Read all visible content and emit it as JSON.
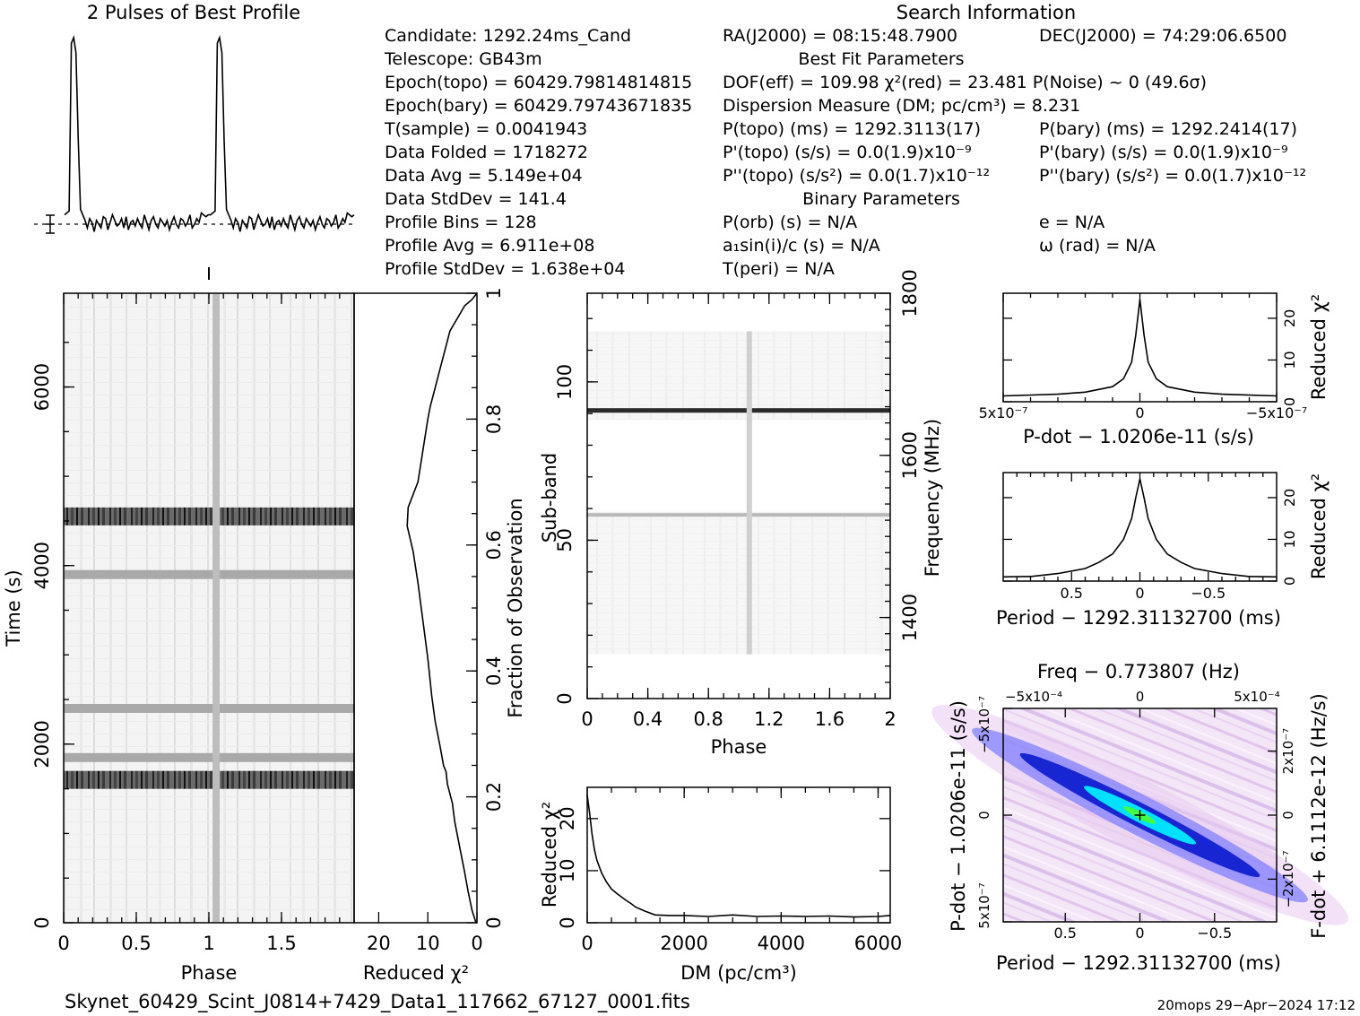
{
  "profile": {
    "title": "2 Pulses of Best Profile",
    "values": [
      0.05,
      0.06,
      0.07,
      0.97,
      1.0,
      0.92,
      0.45,
      0.08,
      0.05,
      0.02,
      -0.02,
      0.03,
      0.01,
      -0.04,
      0.02,
      0.0,
      -0.02,
      0.04,
      0.03,
      -0.03,
      0.01,
      0.05,
      0.02,
      -0.01,
      0.0,
      0.03,
      -0.02,
      0.04,
      -0.03,
      0.01,
      0.02,
      -0.01,
      0.03,
      0.0,
      -0.02,
      0.05,
      0.01,
      -0.03,
      0.02,
      0.04,
      0.0,
      -0.02,
      0.03,
      0.01,
      -0.01,
      0.02,
      -0.03,
      0.01,
      0.04,
      0.0,
      -0.02,
      0.03,
      0.02,
      -0.01,
      0.01,
      0.05,
      -0.02,
      0.0,
      0.03,
      0.01,
      0.06,
      0.05,
      0.04,
      0.05
    ]
  },
  "search_info": {
    "title": "Search Information",
    "col1": [
      "Candidate:  1292.24ms_Cand",
      "Telescope:  GB43m",
      "Epoch(topo) = 60429.79814814815",
      "Epoch(bary) = 60429.79743671835",
      "T(sample)       =  0.0041943",
      "Data Folded     =  1718272",
      "Data Avg        =  5.149e+04",
      "Data StdDev     =  141.4",
      "Profile Bins    =  128",
      "Profile Avg     =  6.911e+08",
      "Profile StdDev  =  1.638e+04"
    ],
    "col2": [
      "RA(J2000) = 08:15:48.7900",
      "Best Fit Parameters",
      "DOF(eff) = 109.98  χ²(red) = 23.481  P(Noise) ~ 0   (49.6σ)",
      "Dispersion Measure (DM; pc/cm³) = 8.231",
      "P(topo) (ms) =  1292.3113(17)",
      "P'(topo) (s/s) = 0.0(1.9)x10⁻⁹",
      "P''(topo) (s/s²) = 0.0(1.7)x10⁻¹²",
      "Binary Parameters",
      "P(orb) (s) = N/A",
      "a₁sin(i)/c (s) = N/A",
      "T(peri) = N/A"
    ],
    "col3": [
      "DEC(J2000) = 74:29:06.6500",
      "P(bary) (ms) =  1292.2414(17)",
      "P'(bary) (s/s) = 0.0(1.9)x10⁻⁹",
      "P''(bary) (s/s²) = 0.0(1.7)x10⁻¹²",
      "e = N/A",
      "ω (rad) = N/A"
    ]
  },
  "chart_data": [
    {
      "type": "heatmap",
      "name": "time-phase",
      "xlabel": "Phase",
      "ylabel": "Time (s)",
      "xlim": [
        0,
        2
      ],
      "ylim": [
        0,
        7050
      ],
      "xticks": [
        "0",
        "0.5",
        "1",
        "1.5"
      ],
      "yticks": [
        "0",
        "2000",
        "4000",
        "6000"
      ],
      "pulse_phase": 1.05,
      "dark_bands_time_s": [
        1600,
        1850,
        2400,
        3900,
        4550
      ]
    },
    {
      "type": "line",
      "name": "reduced-chi2-vs-fraction",
      "xlabel": "Reduced χ²",
      "ylabel": "Fraction of Observation",
      "xlim": [
        25,
        0
      ],
      "ylim": [
        0,
        1
      ],
      "xticks": [
        "20",
        "10",
        "0"
      ],
      "yticks": [
        "0",
        "0.2",
        "0.4",
        "0.6",
        "0.8",
        "1"
      ],
      "x": [
        0.2,
        1.0,
        1.8,
        2.5,
        3.5,
        4.5,
        5.0,
        6.0,
        6.3,
        6.8,
        7.5,
        8.5,
        9.2,
        10.0,
        11.0,
        12.0,
        13.0,
        14.2,
        14.0,
        12.0,
        11.0,
        10.0,
        9.5,
        8.5,
        7.5,
        6.5,
        5.5,
        4.0,
        2.5,
        1.0,
        0.0
      ],
      "y": [
        0.0,
        0.02,
        0.05,
        0.08,
        0.12,
        0.16,
        0.19,
        0.22,
        0.24,
        0.25,
        0.28,
        0.32,
        0.36,
        0.42,
        0.48,
        0.54,
        0.59,
        0.63,
        0.66,
        0.7,
        0.75,
        0.8,
        0.82,
        0.85,
        0.88,
        0.91,
        0.94,
        0.96,
        0.98,
        0.99,
        1.0
      ]
    },
    {
      "type": "heatmap",
      "name": "subband-phase",
      "xlabel": "Phase",
      "ylabel": "Sub-band",
      "y2label": "Frequency (MHz)",
      "xlim": [
        0,
        2
      ],
      "ylim": [
        0,
        128
      ],
      "y2lim": [
        1300,
        1800
      ],
      "xticks": [
        "0",
        "0.4",
        "0.8",
        "1.2",
        "1.6",
        "2"
      ],
      "yticks": [
        "0",
        "50",
        "100"
      ],
      "y2ticks": [
        "1400",
        "1600",
        "1800"
      ],
      "pulse_phase": 1.07,
      "bright_subband": 91,
      "faint_subband": 58,
      "data_subbands": [
        14,
        116
      ],
      "gap_subbands": [
        59,
        88
      ]
    },
    {
      "type": "line",
      "name": "dm-curve",
      "xlabel": "DM (pc/cm³)",
      "ylabel": "Reduced χ²",
      "xlim": [
        0,
        6250
      ],
      "ylim": [
        0,
        26
      ],
      "xticks": [
        "0",
        "2000",
        "4000",
        "6000"
      ],
      "yticks": [
        "0",
        "10",
        "20"
      ],
      "x": [
        0,
        50,
        100,
        150,
        200,
        300,
        400,
        500,
        600,
        700,
        800,
        900,
        1000,
        1200,
        1400,
        1700,
        2000,
        2500,
        3000,
        3500,
        4000,
        4500,
        5000,
        5500,
        6000,
        6250
      ],
      "y": [
        24.5,
        21.0,
        17.0,
        14.0,
        12.0,
        9.5,
        7.8,
        6.5,
        5.7,
        5.0,
        4.3,
        3.7,
        3.0,
        2.2,
        1.5,
        1.4,
        1.4,
        1.2,
        1.5,
        1.2,
        1.3,
        1.2,
        1.3,
        1.1,
        1.2,
        1.4
      ]
    },
    {
      "type": "line",
      "name": "pdot-curve",
      "xlabel": "P-dot − 1.0206e-11 (s/s)",
      "ylabel": "Reduced χ²",
      "xlim": [
        5e-07,
        -5e-07
      ],
      "ylim": [
        0,
        26
      ],
      "xticks": [
        "5x10⁻⁷",
        "0",
        "−5x10⁻⁷"
      ],
      "yticks": [
        "0",
        "10",
        "20"
      ],
      "x": [
        5e-07,
        3e-07,
        2e-07,
        1e-07,
        6e-08,
        3e-08,
        1.5e-08,
        0,
        -1.5e-08,
        -3e-08,
        -6e-08,
        -1e-07,
        -2e-07,
        -3e-07,
        -5e-07
      ],
      "y": [
        1.4,
        1.8,
        2.3,
        3.6,
        5.5,
        9.5,
        16.0,
        24.5,
        16.0,
        9.5,
        5.5,
        3.6,
        2.3,
        1.8,
        1.4
      ]
    },
    {
      "type": "line",
      "name": "period-curve",
      "xlabel": "Period − 1292.31132700 (ms)",
      "ylabel": "Reduced χ²",
      "xlim": [
        1.0,
        -1.0
      ],
      "ylim": [
        0,
        26
      ],
      "xticks": [
        "0.5",
        "0",
        "−0.5"
      ],
      "yticks": [
        "0",
        "10",
        "20"
      ],
      "x": [
        1.0,
        0.8,
        0.6,
        0.4,
        0.3,
        0.2,
        0.12,
        0.06,
        0.03,
        0,
        -0.03,
        -0.06,
        -0.12,
        -0.2,
        -0.3,
        -0.4,
        -0.6,
        -0.8,
        -1.0
      ],
      "y": [
        1.0,
        1.1,
        1.8,
        3.0,
        4.5,
        6.5,
        10.0,
        15.0,
        20.0,
        24.5,
        20.0,
        15.0,
        10.0,
        6.5,
        4.5,
        3.0,
        1.8,
        1.1,
        1.0
      ]
    },
    {
      "type": "heatmap",
      "name": "period-pdot",
      "title": "Freq − 0.773807 (Hz)",
      "xlabel": "Period − 1292.31132700 (ms)",
      "ylabel": "P-dot − 1.0206e-11 (s/s)",
      "y2label": "F-dot + 6.1112e-12 (Hz/s)",
      "xticks": [
        "0.5",
        "0",
        "−0.5"
      ],
      "topticks": [
        "−5x10⁻⁴",
        "0",
        "5x10⁻⁴"
      ],
      "yticks": [
        "5x10⁻⁷",
        "0",
        "−5x10⁻⁷"
      ],
      "y2ticks": [
        "−2x10⁻⁷",
        "0",
        "2x10⁻⁷"
      ],
      "colors": [
        "#ffffff",
        "#e8c8f0",
        "#8080ff",
        "#1020d0",
        "#00e0ff",
        "#40ff40"
      ]
    }
  ],
  "footer": {
    "filename": "Skynet_60429_Scint_J0814+7429_Data1_117662_67127_0001.fits",
    "stamp": "20mops 29−Apr−2024 17:12"
  }
}
